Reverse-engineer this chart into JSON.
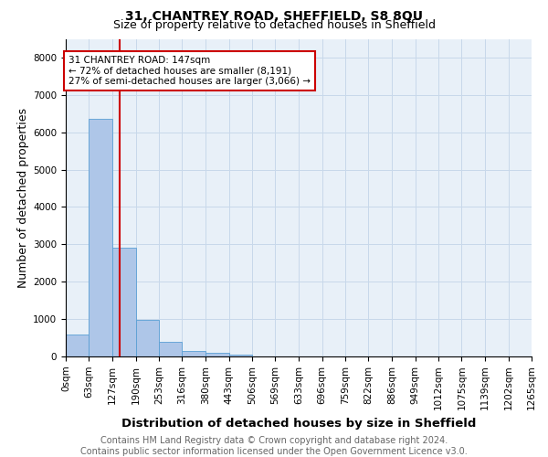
{
  "title": "31, CHANTREY ROAD, SHEFFIELD, S8 8QU",
  "subtitle": "Size of property relative to detached houses in Sheffield",
  "xlabel": "Distribution of detached houses by size in Sheffield",
  "ylabel": "Number of detached properties",
  "footer_line1": "Contains HM Land Registry data © Crown copyright and database right 2024.",
  "footer_line2": "Contains public sector information licensed under the Open Government Licence v3.0.",
  "bin_edges": [
    0,
    63,
    127,
    190,
    253,
    316,
    380,
    443,
    506,
    569,
    633,
    696,
    759,
    822,
    886,
    949,
    1012,
    1075,
    1139,
    1202,
    1265
  ],
  "bin_labels": [
    "0sqm",
    "63sqm",
    "127sqm",
    "190sqm",
    "253sqm",
    "316sqm",
    "380sqm",
    "443sqm",
    "506sqm",
    "569sqm",
    "633sqm",
    "696sqm",
    "759sqm",
    "822sqm",
    "886sqm",
    "949sqm",
    "1012sqm",
    "1075sqm",
    "1139sqm",
    "1202sqm",
    "1265sqm"
  ],
  "bar_heights": [
    580,
    6350,
    2900,
    990,
    380,
    155,
    110,
    60,
    0,
    0,
    0,
    0,
    0,
    0,
    0,
    0,
    0,
    0,
    0,
    0
  ],
  "bar_color": "#aec6e8",
  "bar_edgecolor": "#5a9fd4",
  "vline_x": 147,
  "vline_color": "#cc0000",
  "annotation_text": "31 CHANTREY ROAD: 147sqm\n← 72% of detached houses are smaller (8,191)\n27% of semi-detached houses are larger (3,066) →",
  "annotation_box_color": "#cc0000",
  "ylim": [
    0,
    8500
  ],
  "yticks": [
    0,
    1000,
    2000,
    3000,
    4000,
    5000,
    6000,
    7000,
    8000
  ],
  "background_color": "#ffffff",
  "plot_bg_color": "#e8f0f8",
  "grid_color": "#c8d8ea",
  "title_fontsize": 10,
  "subtitle_fontsize": 9,
  "axis_label_fontsize": 9,
  "tick_fontsize": 7.5,
  "annotation_fontsize": 7.5,
  "footer_fontsize": 7
}
